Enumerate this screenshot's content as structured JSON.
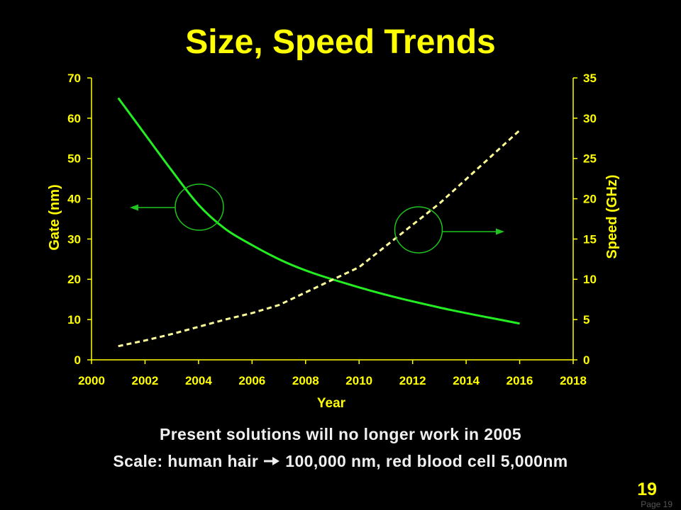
{
  "colors": {
    "background": "#000000",
    "title": "#ffff00",
    "axis": "#ffff00",
    "body_text": "#f0f0f0",
    "annotation": "#1fc41f",
    "page_label": "#555555"
  },
  "chart_data": {
    "type": "line",
    "title": "Size, Speed Trends",
    "xlabel": "Year",
    "ylabel": "Gate (nm)",
    "y2label": "Speed (GHz)",
    "xlim": [
      2000,
      2018
    ],
    "xticks": [
      2000,
      2002,
      2004,
      2006,
      2008,
      2010,
      2012,
      2014,
      2016,
      2018
    ],
    "ylim": [
      0,
      70
    ],
    "yticks": [
      0,
      10,
      20,
      30,
      40,
      50,
      60,
      70
    ],
    "y2lim": [
      0,
      35
    ],
    "y2ticks": [
      0,
      5,
      10,
      15,
      20,
      25,
      30,
      35
    ],
    "grid": false,
    "legend": "none",
    "series": [
      {
        "axis": "left",
        "color": "#22ee22",
        "style": "solid",
        "smooth": true,
        "x": [
          2001,
          2002,
          2003,
          2004,
          2005,
          2006,
          2007,
          2010,
          2013,
          2016
        ],
        "values": [
          65,
          56,
          47,
          38.5,
          32.5,
          28.5,
          25,
          18,
          13,
          9
        ]
      },
      {
        "axis": "right",
        "color": "#ffff99",
        "style": "dashed",
        "smooth": false,
        "x": [
          2001,
          2002,
          2003,
          2004,
          2005,
          2006,
          2007,
          2010,
          2013,
          2016
        ],
        "values": [
          1.7,
          2.4,
          3.2,
          4.1,
          5.0,
          5.8,
          6.8,
          11.5,
          19.4,
          28.5
        ]
      }
    ]
  },
  "notes": {
    "line1": "Present solutions will no longer work in 2005",
    "line2_prefix": "Scale: human hair",
    "line2_icon": "right-arrow-icon",
    "line2_suffix": "100,000 nm, red blood cell 5,000nm"
  },
  "footer": {
    "slide_number": "19",
    "page_label": "Page 19"
  }
}
